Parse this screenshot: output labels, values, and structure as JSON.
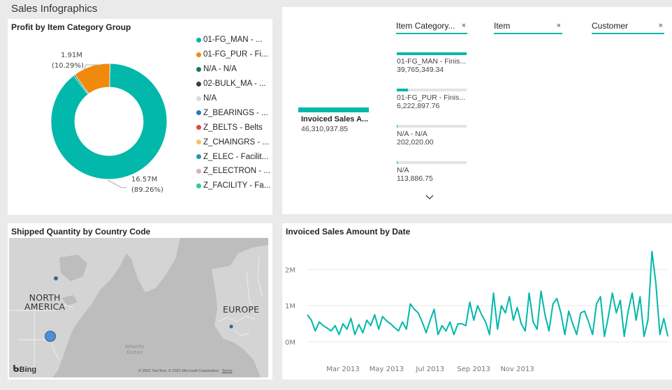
{
  "page": {
    "title": "Sales Infographics"
  },
  "donut": {
    "title": "Profit by Item Category Group",
    "label_small_value": "1.91M",
    "label_small_pct": "(10.29%)",
    "label_large_value": "16.57M",
    "label_large_pct": "(89.26%)",
    "legend": [
      {
        "label": "01-FG_MAN - ...",
        "color": "#01b8aa"
      },
      {
        "label": "01-FG_PUR - Fi...",
        "color": "#f08a0c"
      },
      {
        "label": "N/A - N/A",
        "color": "#137a5e"
      },
      {
        "label": "02-BULK_MA - ...",
        "color": "#3c3c3c"
      },
      {
        "label": "N/A",
        "color": "#d6dade"
      },
      {
        "label": "Z_BEARINGS - ...",
        "color": "#2d76c0"
      },
      {
        "label": "Z_BELTS - Belts",
        "color": "#de4a41"
      },
      {
        "label": "Z_CHAINGRS - ...",
        "color": "#f6c266"
      },
      {
        "label": "Z_ELEC - Facilit...",
        "color": "#1e9bb3"
      },
      {
        "label": "Z_ELECTRON - ...",
        "color": "#d7b0c2"
      },
      {
        "label": "Z_FACILITY - Fa...",
        "color": "#2dcd98"
      }
    ]
  },
  "slicers": {
    "kpi_label": "Invoiced Sales A...",
    "kpi_value": "46,310,937.85",
    "filters": [
      {
        "label": "Item Category...",
        "close": "×"
      },
      {
        "label": "Item",
        "close": "×"
      },
      {
        "label": "Customer",
        "close": "×"
      }
    ],
    "items": [
      {
        "name": "01-FG_MAN - Finis...",
        "value": "39,765,349.34",
        "share": 1.0
      },
      {
        "name": "01-FG_PUR - Finis...",
        "value": "6,222,897.76",
        "share": 0.157
      },
      {
        "name": "N/A - N/A",
        "value": "202,020.00",
        "share": 0.01
      },
      {
        "name": "N/A",
        "value": "113,886.75",
        "share": 0.006
      }
    ]
  },
  "map": {
    "title": "Shipped Quantity by Country Code",
    "label_north_america": "NORTH\nAMERICA",
    "label_europe": "EUROPE",
    "label_atlantic": "Atlantic\nOcean",
    "bing": "Bing",
    "copyright": "© 2021 TomTom, © 2021 Microsoft Corporation",
    "terms": "Terms"
  },
  "chart_data": {
    "type": "line",
    "title": "Invoiced Sales Amount by Date",
    "xlabel": "",
    "ylabel": "",
    "ylim": [
      0,
      2700000
    ],
    "yticks": [
      {
        "value": 0,
        "label": "0M"
      },
      {
        "value": 1000000,
        "label": "1M"
      },
      {
        "value": 2000000,
        "label": "2M"
      }
    ],
    "xticks": [
      {
        "value": 9,
        "label": "Mar 2013"
      },
      {
        "value": 20,
        "label": "May 2013"
      },
      {
        "value": 31,
        "label": "Jul 2013"
      },
      {
        "value": 42,
        "label": "Sep 2013"
      },
      {
        "value": 53,
        "label": "Nov 2013"
      }
    ],
    "grid": true,
    "series": [
      {
        "name": "Invoiced Sales Amount",
        "color": "#01b8aa",
        "values": [
          750000,
          600000,
          300000,
          550000,
          450000,
          380000,
          300000,
          450000,
          200000,
          500000,
          350000,
          650000,
          200000,
          480000,
          250000,
          600000,
          450000,
          750000,
          350000,
          700000,
          580000,
          500000,
          400000,
          300000,
          550000,
          350000,
          1050000,
          900000,
          800000,
          550000,
          250000,
          600000,
          900000,
          200000,
          450000,
          300000,
          550000,
          200000,
          500000,
          500000,
          450000,
          1100000,
          600000,
          1000000,
          750000,
          550000,
          200000,
          1350000,
          350000,
          1000000,
          800000,
          1250000,
          600000,
          950000,
          500000,
          300000,
          1350000,
          550000,
          350000,
          1400000,
          750000,
          300000,
          1050000,
          1200000,
          800000,
          200000,
          850000,
          500000,
          200000,
          800000,
          850000,
          550000,
          200000,
          1050000,
          1250000,
          150000,
          700000,
          1350000,
          800000,
          1150000,
          150000,
          850000,
          1350000,
          600000,
          1250000,
          150000,
          600000,
          2500000,
          1600000,
          200000,
          650000,
          150000
        ]
      }
    ]
  }
}
